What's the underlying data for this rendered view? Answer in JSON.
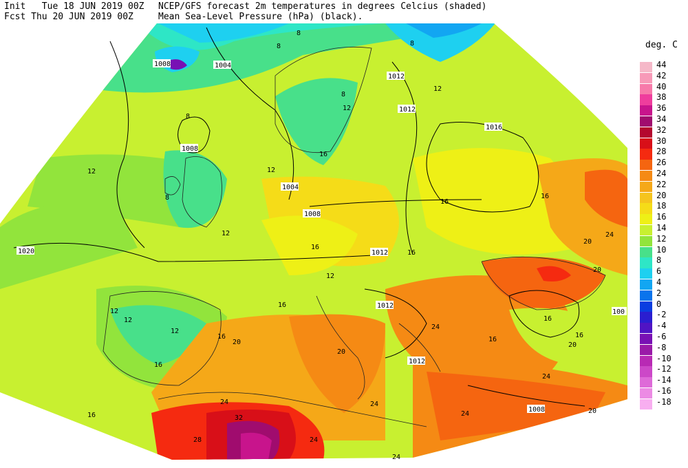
{
  "header": {
    "init_label": "Init",
    "init_date": "Tue 18 JUN 2019 00Z",
    "fcst_label": "Fcst",
    "fcst_date": "Thu 20 JUN 2019 00Z",
    "title_line1": "NCEP/GFS forecast 2m temperatures in degrees Celcius (shaded)",
    "title_line2": "Mean Sea-Level Pressure (hPa) (black)."
  },
  "legend": {
    "title": "deg. C",
    "levels": [
      {
        "label": "44",
        "color": "#f5b8c8"
      },
      {
        "label": "42",
        "color": "#f79ab8"
      },
      {
        "label": "40",
        "color": "#f77aaa"
      },
      {
        "label": "38",
        "color": "#ef3d9d"
      },
      {
        "label": "36",
        "color": "#c8148c"
      },
      {
        "label": "34",
        "color": "#a00c6e"
      },
      {
        "label": "32",
        "color": "#b4082e"
      },
      {
        "label": "30",
        "color": "#d80f18"
      },
      {
        "label": "28",
        "color": "#f52a10"
      },
      {
        "label": "26",
        "color": "#f56510"
      },
      {
        "label": "24",
        "color": "#f58a14"
      },
      {
        "label": "22",
        "color": "#f5a818"
      },
      {
        "label": "20",
        "color": "#f5c41e"
      },
      {
        "label": "18",
        "color": "#f5dc18"
      },
      {
        "label": "16",
        "color": "#eef016"
      },
      {
        "label": "14",
        "color": "#c8f030"
      },
      {
        "label": "12",
        "color": "#92e43c"
      },
      {
        "label": "10",
        "color": "#48e08a"
      },
      {
        "label": "8",
        "color": "#2ee6c6"
      },
      {
        "label": "6",
        "color": "#1ed0f0"
      },
      {
        "label": "4",
        "color": "#12a6f2"
      },
      {
        "label": "2",
        "color": "#0a74ec"
      },
      {
        "label": "0",
        "color": "#0a3ee0"
      },
      {
        "label": "-2",
        "color": "#2a1ed0"
      },
      {
        "label": "-4",
        "color": "#5014c4"
      },
      {
        "label": "-6",
        "color": "#7810b4"
      },
      {
        "label": "-8",
        "color": "#9a1aa8"
      },
      {
        "label": "-10",
        "color": "#b82ab4"
      },
      {
        "label": "-12",
        "color": "#cc48c8"
      },
      {
        "label": "-14",
        "color": "#de6ad8"
      },
      {
        "label": "-16",
        "color": "#ec8ae4"
      },
      {
        "label": "-18",
        "color": "#f8aef0"
      }
    ]
  },
  "isobar_labels": [
    "1008",
    "1004",
    "1012",
    "1012",
    "1016",
    "1008",
    "1004",
    "1008",
    "1012",
    "1020",
    "1012",
    "1012",
    "1008",
    "100"
  ],
  "temp_labels": [
    "8",
    "8",
    "8",
    "8",
    "12",
    "8",
    "12",
    "16",
    "12",
    "12",
    "8",
    "16",
    "16",
    "16",
    "12",
    "16",
    "20",
    "24",
    "12",
    "20",
    "16",
    "12",
    "16",
    "12",
    "16",
    "20",
    "16",
    "20",
    "24",
    "24",
    "24",
    "28",
    "32",
    "24",
    "24",
    "16",
    "20",
    "16",
    "12",
    "16",
    "24",
    "24",
    "20"
  ]
}
